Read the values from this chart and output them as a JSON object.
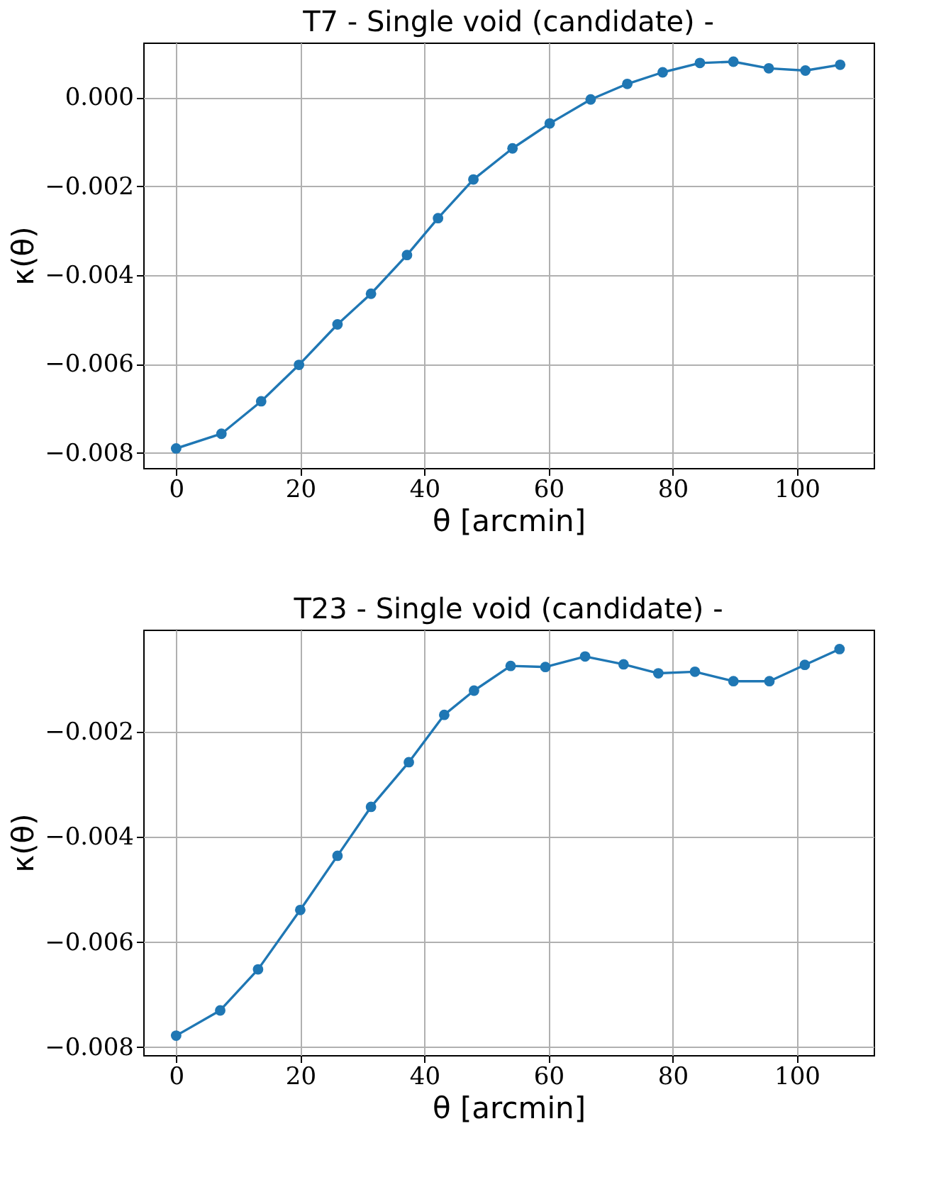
{
  "chart_data": [
    {
      "type": "line",
      "title": "T7 - Single void (candidate) -",
      "xlabel": "θ [arcmin]",
      "ylabel": "κ(θ)",
      "marker": "circle",
      "grid": true,
      "line_style": "solid",
      "x": [
        0,
        7.3,
        13.7,
        19.8,
        26.0,
        31.4,
        37.2,
        42.2,
        47.9,
        54.2,
        60.2,
        66.8,
        72.7,
        78.4,
        84.4,
        89.8,
        95.5,
        101.4,
        107.0
      ],
      "series": [
        {
          "color": "#1f77b4",
          "values": [
            -0.0079,
            -0.00757,
            -0.00684,
            -0.00602,
            -0.00511,
            -0.00442,
            -0.00355,
            -0.00272,
            -0.00185,
            -0.00115,
            -0.00059,
            -5e-05,
            0.0003,
            0.00056,
            0.00077,
            0.0008,
            0.00065,
            0.0006,
            0.00073
          ]
        }
      ],
      "xlim": [
        -5.3,
        112.4
      ],
      "xticks": [
        0,
        20,
        40,
        60,
        80,
        100
      ],
      "ylim": [
        -0.00834,
        0.00123
      ],
      "yticks": [
        {
          "value": -0.008,
          "label": "−0.008"
        },
        {
          "value": -0.006,
          "label": "−0.006"
        },
        {
          "value": -0.004,
          "label": "−0.004"
        },
        {
          "value": -0.002,
          "label": "−0.002"
        },
        {
          "value": 0,
          "label": "0.000"
        }
      ]
    },
    {
      "type": "line",
      "title": "T23 - Single void (candidate) -",
      "xlabel": "θ [arcmin]",
      "ylabel": "κ(θ)",
      "marker": "circle",
      "grid": true,
      "line_style": "solid",
      "x": [
        0,
        7.1,
        13.2,
        20.0,
        26.0,
        31.4,
        37.5,
        43.2,
        48.0,
        53.9,
        59.5,
        65.9,
        72.1,
        77.7,
        83.6,
        89.8,
        95.6,
        101.3,
        106.9
      ],
      "series": [
        {
          "color": "#1f77b4",
          "values": [
            -0.00778,
            -0.0073,
            -0.00652,
            -0.00539,
            -0.00436,
            -0.00343,
            -0.00258,
            -0.00168,
            -0.00122,
            -0.00075,
            -0.00077,
            -0.00057,
            -0.00072,
            -0.00089,
            -0.00086,
            -0.00104,
            -0.00104,
            -0.00073,
            -0.00043
          ]
        }
      ],
      "xlim": [
        -5.3,
        112.4
      ],
      "xticks": [
        0,
        20,
        40,
        60,
        80,
        100
      ],
      "ylim": [
        -0.00815,
        -6e-05
      ],
      "yticks": [
        {
          "value": -0.008,
          "label": "−0.008"
        },
        {
          "value": -0.006,
          "label": "−0.006"
        },
        {
          "value": -0.004,
          "label": "−0.004"
        },
        {
          "value": -0.002,
          "label": "−0.002"
        }
      ]
    }
  ]
}
